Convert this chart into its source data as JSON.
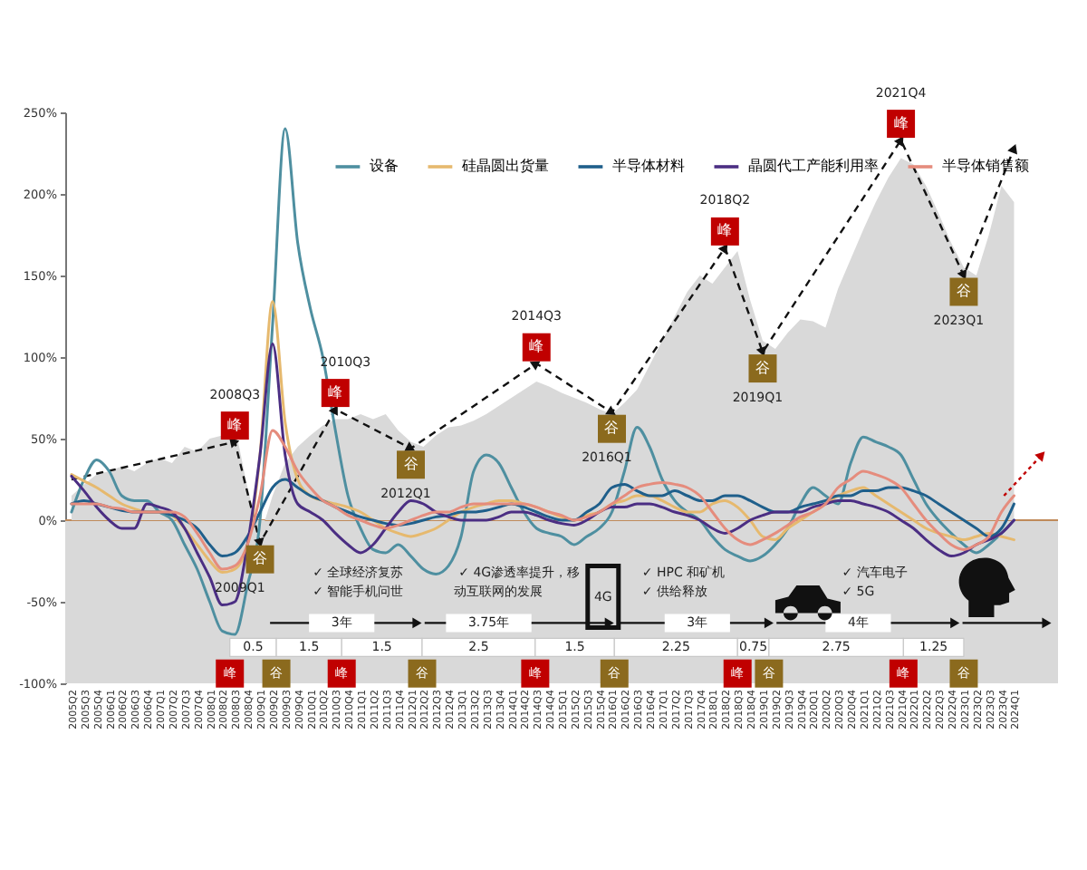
{
  "chart_data": {
    "type": "line",
    "categories": [
      "2005Q2",
      "2005Q3",
      "2005Q4",
      "2006Q1",
      "2006Q2",
      "2006Q3",
      "2006Q4",
      "2007Q1",
      "2007Q2",
      "2007Q3",
      "2007Q4",
      "2008Q1",
      "2008Q2",
      "2008Q3",
      "2008Q4",
      "2009Q1",
      "2009Q2",
      "2009Q3",
      "2009Q4",
      "2010Q1",
      "2010Q2",
      "2010Q3",
      "2010Q4",
      "2011Q1",
      "2011Q2",
      "2011Q3",
      "2011Q4",
      "2012Q1",
      "2012Q2",
      "2012Q3",
      "2012Q4",
      "2013Q1",
      "2013Q2",
      "2013Q3",
      "2013Q4",
      "2014Q1",
      "2014Q2",
      "2014Q3",
      "2014Q4",
      "2015Q1",
      "2015Q2",
      "2015Q3",
      "2015Q4",
      "2016Q1",
      "2016Q2",
      "2016Q3",
      "2016Q4",
      "2017Q1",
      "2017Q2",
      "2017Q3",
      "2017Q4",
      "2018Q1",
      "2018Q2",
      "2018Q3",
      "2018Q4",
      "2019Q1",
      "2019Q2",
      "2019Q3",
      "2019Q4",
      "2020Q1",
      "2020Q2",
      "2020Q3",
      "2020Q4",
      "2021Q1",
      "2021Q2",
      "2021Q3",
      "2021Q4",
      "2022Q1",
      "2022Q2",
      "2022Q3",
      "2022Q4",
      "2023Q1",
      "2023Q2",
      "2023Q3",
      "2023Q4",
      "2024Q1"
    ],
    "series": [
      {
        "type": "area",
        "color": "#d9d9d9",
        "values": [
          15,
          22,
          28,
          30,
          33,
          30,
          35,
          38,
          35,
          45,
          42,
          50,
          52,
          58,
          20,
          -10,
          15,
          35,
          45,
          52,
          58,
          62,
          62,
          65,
          62,
          65,
          55,
          48,
          45,
          52,
          57,
          58,
          61,
          65,
          70,
          75,
          80,
          85,
          82,
          78,
          75,
          72,
          68,
          65,
          72,
          80,
          95,
          110,
          125,
          140,
          150,
          145,
          155,
          165,
          135,
          110,
          105,
          115,
          123,
          122,
          118,
          142,
          160,
          178,
          195,
          210,
          222,
          218,
          205,
          188,
          170,
          155,
          150,
          175,
          205,
          195
        ]
      },
      {
        "type": "line",
        "color": "#111111",
        "line_style": "dashed",
        "marker": "triangle",
        "x": [
          "2005Q2",
          "2008Q3",
          "2009Q1",
          "2010Q3",
          "2012Q1",
          "2014Q3",
          "2016Q1",
          "2018Q2",
          "2019Q1",
          "2021Q4",
          "2023Q1",
          "2024Q1"
        ],
        "values": [
          25,
          48,
          -14,
          68,
          44,
          96,
          66,
          167,
          103,
          233,
          150,
          228
        ]
      },
      {
        "name": "设备",
        "color": "#4e8fa0",
        "values": [
          5,
          25,
          37,
          30,
          15,
          12,
          12,
          5,
          0,
          -15,
          -30,
          -50,
          -68,
          -70,
          -40,
          0,
          120,
          240,
          170,
          130,
          100,
          55,
          15,
          -5,
          -18,
          -20,
          -15,
          -22,
          -30,
          -33,
          -28,
          -10,
          30,
          40,
          35,
          20,
          5,
          -5,
          -8,
          -10,
          -15,
          -10,
          -5,
          5,
          30,
          57,
          45,
          25,
          12,
          5,
          0,
          -10,
          -18,
          -22,
          -25,
          -22,
          -15,
          -5,
          10,
          20,
          15,
          10,
          35,
          51,
          48,
          45,
          40,
          25,
          10,
          0,
          -8,
          -15,
          -20,
          -15,
          -8,
          0
        ]
      },
      {
        "name": "硅晶圆出货量",
        "color": "#e6b96e",
        "values": [
          28,
          24,
          20,
          15,
          10,
          7,
          5,
          5,
          3,
          -5,
          -15,
          -25,
          -32,
          -30,
          -15,
          40,
          134,
          60,
          25,
          15,
          12,
          10,
          8,
          5,
          0,
          -5,
          -8,
          -10,
          -8,
          -5,
          0,
          5,
          8,
          10,
          12,
          12,
          10,
          8,
          5,
          2,
          0,
          3,
          5,
          10,
          12,
          15,
          15,
          12,
          8,
          5,
          5,
          10,
          12,
          8,
          0,
          -10,
          -12,
          -5,
          0,
          5,
          10,
          15,
          18,
          20,
          15,
          10,
          5,
          0,
          -5,
          -8,
          -10,
          -12,
          -10,
          -8,
          -10,
          -12
        ]
      },
      {
        "name": "半导体材料",
        "color": "#1f5f8b",
        "values": [
          10,
          12,
          10,
          8,
          6,
          5,
          5,
          5,
          3,
          0,
          -5,
          -15,
          -22,
          -20,
          -10,
          5,
          20,
          25,
          20,
          15,
          12,
          8,
          5,
          2,
          0,
          -2,
          -3,
          -2,
          0,
          2,
          3,
          5,
          5,
          6,
          8,
          10,
          8,
          5,
          2,
          0,
          0,
          5,
          10,
          20,
          22,
          18,
          15,
          15,
          18,
          15,
          12,
          12,
          15,
          15,
          12,
          8,
          5,
          5,
          8,
          10,
          12,
          15,
          15,
          18,
          18,
          20,
          20,
          18,
          15,
          10,
          5,
          0,
          -5,
          -10,
          -5,
          10
        ]
      },
      {
        "name": "晶圆代工产能利用率",
        "color": "#4b2e83",
        "values": [
          27,
          18,
          8,
          0,
          -5,
          -5,
          10,
          8,
          5,
          -5,
          -20,
          -35,
          -52,
          -50,
          -15,
          40,
          108,
          40,
          10,
          5,
          0,
          -8,
          -15,
          -20,
          -15,
          -5,
          5,
          12,
          10,
          5,
          2,
          0,
          0,
          0,
          2,
          5,
          5,
          3,
          0,
          -2,
          -3,
          0,
          5,
          8,
          8,
          10,
          10,
          8,
          5,
          3,
          0,
          -5,
          -8,
          -5,
          0,
          3,
          5,
          5,
          5,
          8,
          10,
          12,
          12,
          10,
          8,
          5,
          0,
          -5,
          -12,
          -18,
          -22,
          -20,
          -15,
          -12,
          -8,
          0
        ]
      },
      {
        "name": "半导体销售额",
        "color": "#e58c7d",
        "values": [
          10,
          10,
          10,
          8,
          7,
          5,
          5,
          5,
          5,
          2,
          -8,
          -20,
          -30,
          -28,
          -15,
          15,
          55,
          45,
          30,
          20,
          12,
          8,
          3,
          0,
          -3,
          -5,
          -3,
          0,
          3,
          5,
          5,
          8,
          10,
          10,
          10,
          10,
          10,
          8,
          5,
          3,
          0,
          2,
          5,
          10,
          15,
          20,
          22,
          23,
          22,
          20,
          15,
          5,
          -5,
          -12,
          -15,
          -12,
          -8,
          -3,
          2,
          5,
          10,
          20,
          25,
          30,
          28,
          25,
          20,
          10,
          0,
          -8,
          -15,
          -18,
          -15,
          -10,
          5,
          15
        ]
      }
    ],
    "ylim": [
      -100,
      250
    ],
    "yticks": [
      {
        "value": -100,
        "label": "-100%"
      },
      {
        "value": -50,
        "label": "-50%"
      },
      {
        "value": 0,
        "label": "0%"
      },
      {
        "value": 50,
        "label": "50%"
      },
      {
        "value": 100,
        "label": "100%"
      },
      {
        "value": 150,
        "label": "150%"
      },
      {
        "value": 200,
        "label": "200%"
      },
      {
        "value": 250,
        "label": "250%"
      }
    ],
    "ref_lines": [
      {
        "axis": "y",
        "value": 0,
        "color": "#c08a5a"
      }
    ],
    "bands": [
      {
        "axis": "y",
        "from": -100,
        "to": 0,
        "color": "#d9d9d9"
      }
    ],
    "legend": "top",
    "annotations": [
      {
        "text": "峰",
        "x": "2008Q3",
        "y": 48
      },
      {
        "text": "谷",
        "x": "2009Q1",
        "y": -14
      },
      {
        "text": "峰",
        "x": "2010Q3",
        "y": 68
      },
      {
        "text": "谷",
        "x": "2012Q1",
        "y": 44
      },
      {
        "text": "峰",
        "x": "2014Q3",
        "y": 96
      },
      {
        "text": "谷",
        "x": "2016Q1",
        "y": 66
      },
      {
        "text": "峰",
        "x": "2018Q2",
        "y": 167
      },
      {
        "text": "谷",
        "x": "2019Q1",
        "y": 103
      },
      {
        "text": "峰",
        "x": "2021Q4",
        "y": 233
      },
      {
        "text": "谷",
        "x": "2023Q1",
        "y": 150
      },
      "✓ 全球经济复苏",
      "✓ 智能手机问世",
      "✓ 4G渗透率提升，移",
      "动互联网的发展",
      "4G",
      "✓ HPC 和矿机",
      "✓ 供给释放",
      "✓ 汽车电子",
      "✓ 5G",
      "3年",
      "3.75年",
      "3年",
      "4年",
      "0.5",
      "1.5",
      "1.5",
      "2.5",
      "1.5",
      "2.25",
      "0.75",
      "2.75",
      "1.25",
      "峰",
      "谷",
      "峰",
      "谷",
      "峰",
      "谷",
      "峰",
      "谷",
      "峰",
      "谷",
      "2008Q3",
      "2009Q1",
      "2010Q3",
      "2012Q1",
      "2014Q3",
      "2016Q1",
      "2018Q2",
      "2019Q1",
      "2021Q4",
      "2023Q1"
    ]
  }
}
